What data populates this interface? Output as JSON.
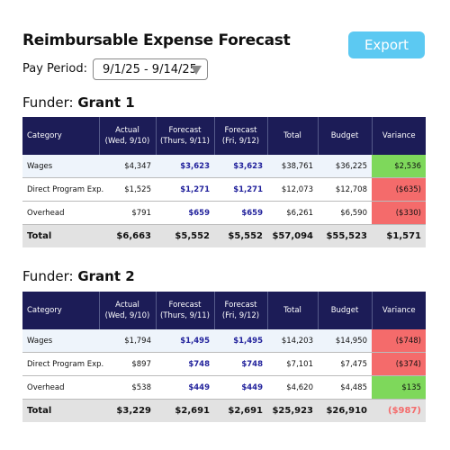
{
  "header": {
    "title": "Reimbursable Expense Forecast",
    "export": "Export",
    "pay_period_label": "Pay Period:",
    "pay_period": "9/1/25 - 9/14/25"
  },
  "columns": [
    {
      "label": "Category"
    },
    {
      "label": "Actual",
      "sub": "(Wed, 9/10)"
    },
    {
      "label": "Forecast",
      "sub": "(Thurs, 9/11)"
    },
    {
      "label": "Forecast",
      "sub": "(Fri, 9/12)"
    },
    {
      "label": "Total"
    },
    {
      "label": "Budget"
    },
    {
      "label": "Variance"
    }
  ],
  "funders": [
    {
      "label": "Funder:",
      "name": "Grant 1",
      "rows": [
        [
          "Wages",
          "$4,347",
          "$3,623",
          "$3,623",
          "$38,761",
          "$36,225",
          "$2,536"
        ],
        [
          "Direct Program Exp.",
          "$1,525",
          "$1,271",
          "$1,271",
          "$12,073",
          "$12,708",
          "($635)"
        ],
        [
          "Overhead",
          "$791",
          "$659",
          "$659",
          "$6,261",
          "$6,590",
          "($330)"
        ]
      ],
      "total": [
        "Total",
        "$6,663",
        "$5,552",
        "$5,552",
        "$57,094",
        "$55,523",
        "$1,571"
      ]
    },
    {
      "label": "Funder:",
      "name": "Grant 2",
      "rows": [
        [
          "Wages",
          "$1,794",
          "$1,495",
          "$1,495",
          "$14,203",
          "$14,950",
          "($748)"
        ],
        [
          "Direct Program Exp.",
          "$897",
          "$748",
          "$748",
          "$7,101",
          "$7,475",
          "($374)"
        ],
        [
          "Overhead",
          "$538",
          "$449",
          "$449",
          "$4,620",
          "$4,485",
          "$135"
        ]
      ],
      "total": [
        "Total",
        "$3,229",
        "$2,691",
        "$2,691",
        "$25,923",
        "$26,910",
        "($987)"
      ]
    }
  ]
}
